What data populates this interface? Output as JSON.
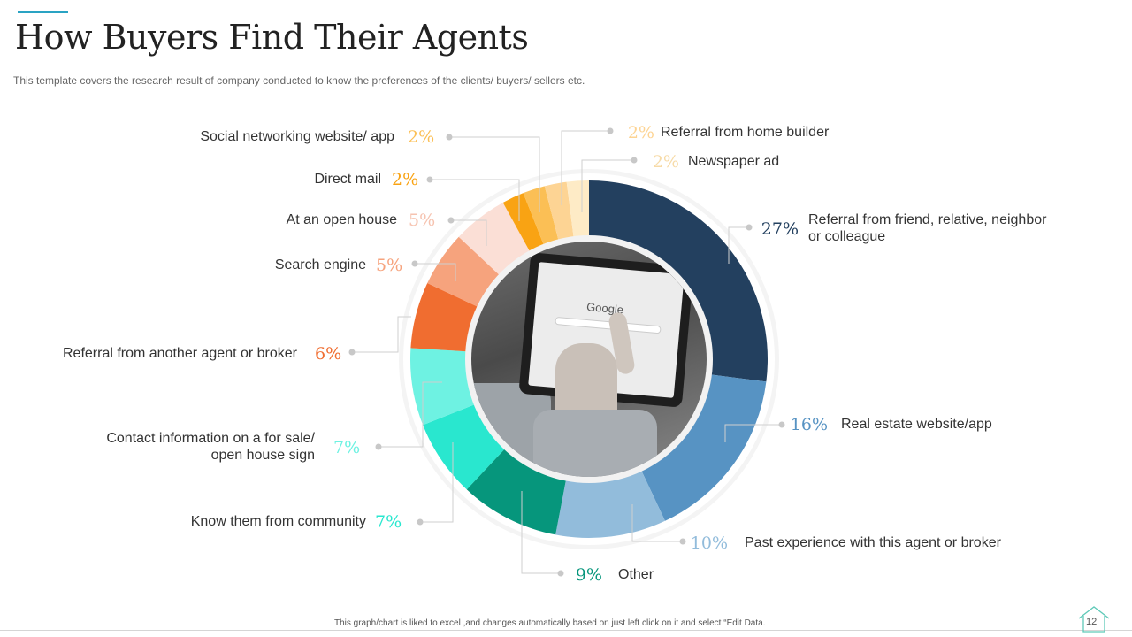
{
  "header": {
    "title": "How Buyers Find Their Agents",
    "subtitle": "This template covers the research result of company conducted to know the preferences of the clients/ buyers/ sellers etc."
  },
  "footer": {
    "note": "This graph/chart is liked to excel ,and changes automatically based on just left click on it and select “Edit Data.",
    "page_number": "12"
  },
  "chart_data": {
    "type": "pie",
    "variant": "donut",
    "unit": "%",
    "slices": [
      {
        "label": "Referral from friend, relative, neighbor or colleague",
        "value": 27,
        "display": "27%",
        "color": "#23405f"
      },
      {
        "label": "Real estate website/app",
        "value": 16,
        "display": "16%",
        "color": "#5793c3"
      },
      {
        "label": "Past experience with this agent or broker",
        "value": 10,
        "display": "10%",
        "color": "#92bcdb"
      },
      {
        "label": "Other",
        "value": 9,
        "display": "9%",
        "color": "#06967c"
      },
      {
        "label": "Know them from community",
        "value": 7,
        "display": "7%",
        "color": "#29e7cf"
      },
      {
        "label": "Contact information on a for sale/ open house sign",
        "value": 7,
        "display": "7%",
        "color": "#6ef2e2"
      },
      {
        "label": "Referral from another agent or broker",
        "value": 6,
        "display": "6%",
        "color": "#f06d30"
      },
      {
        "label": "Search engine",
        "value": 5,
        "display": "5%",
        "color": "#f6a37d"
      },
      {
        "label": "At an open house",
        "value": 5,
        "display": "5%",
        "color": "#fbdfd6"
      },
      {
        "label": "Direct mail",
        "value": 2,
        "display": "2%",
        "color": "#f9a313"
      },
      {
        "label": "Social networking website/ app",
        "value": 2,
        "display": "2%",
        "color": "#fbbf55"
      },
      {
        "label": "Referral from home builder",
        "value": 2,
        "display": "2%",
        "color": "#fdd494"
      },
      {
        "label": "Newspaper ad",
        "value": 2,
        "display": "2%",
        "color": "#feebc6"
      }
    ]
  },
  "center_image": {
    "icon": "tablet-search-photo",
    "screen_text": "Google"
  }
}
